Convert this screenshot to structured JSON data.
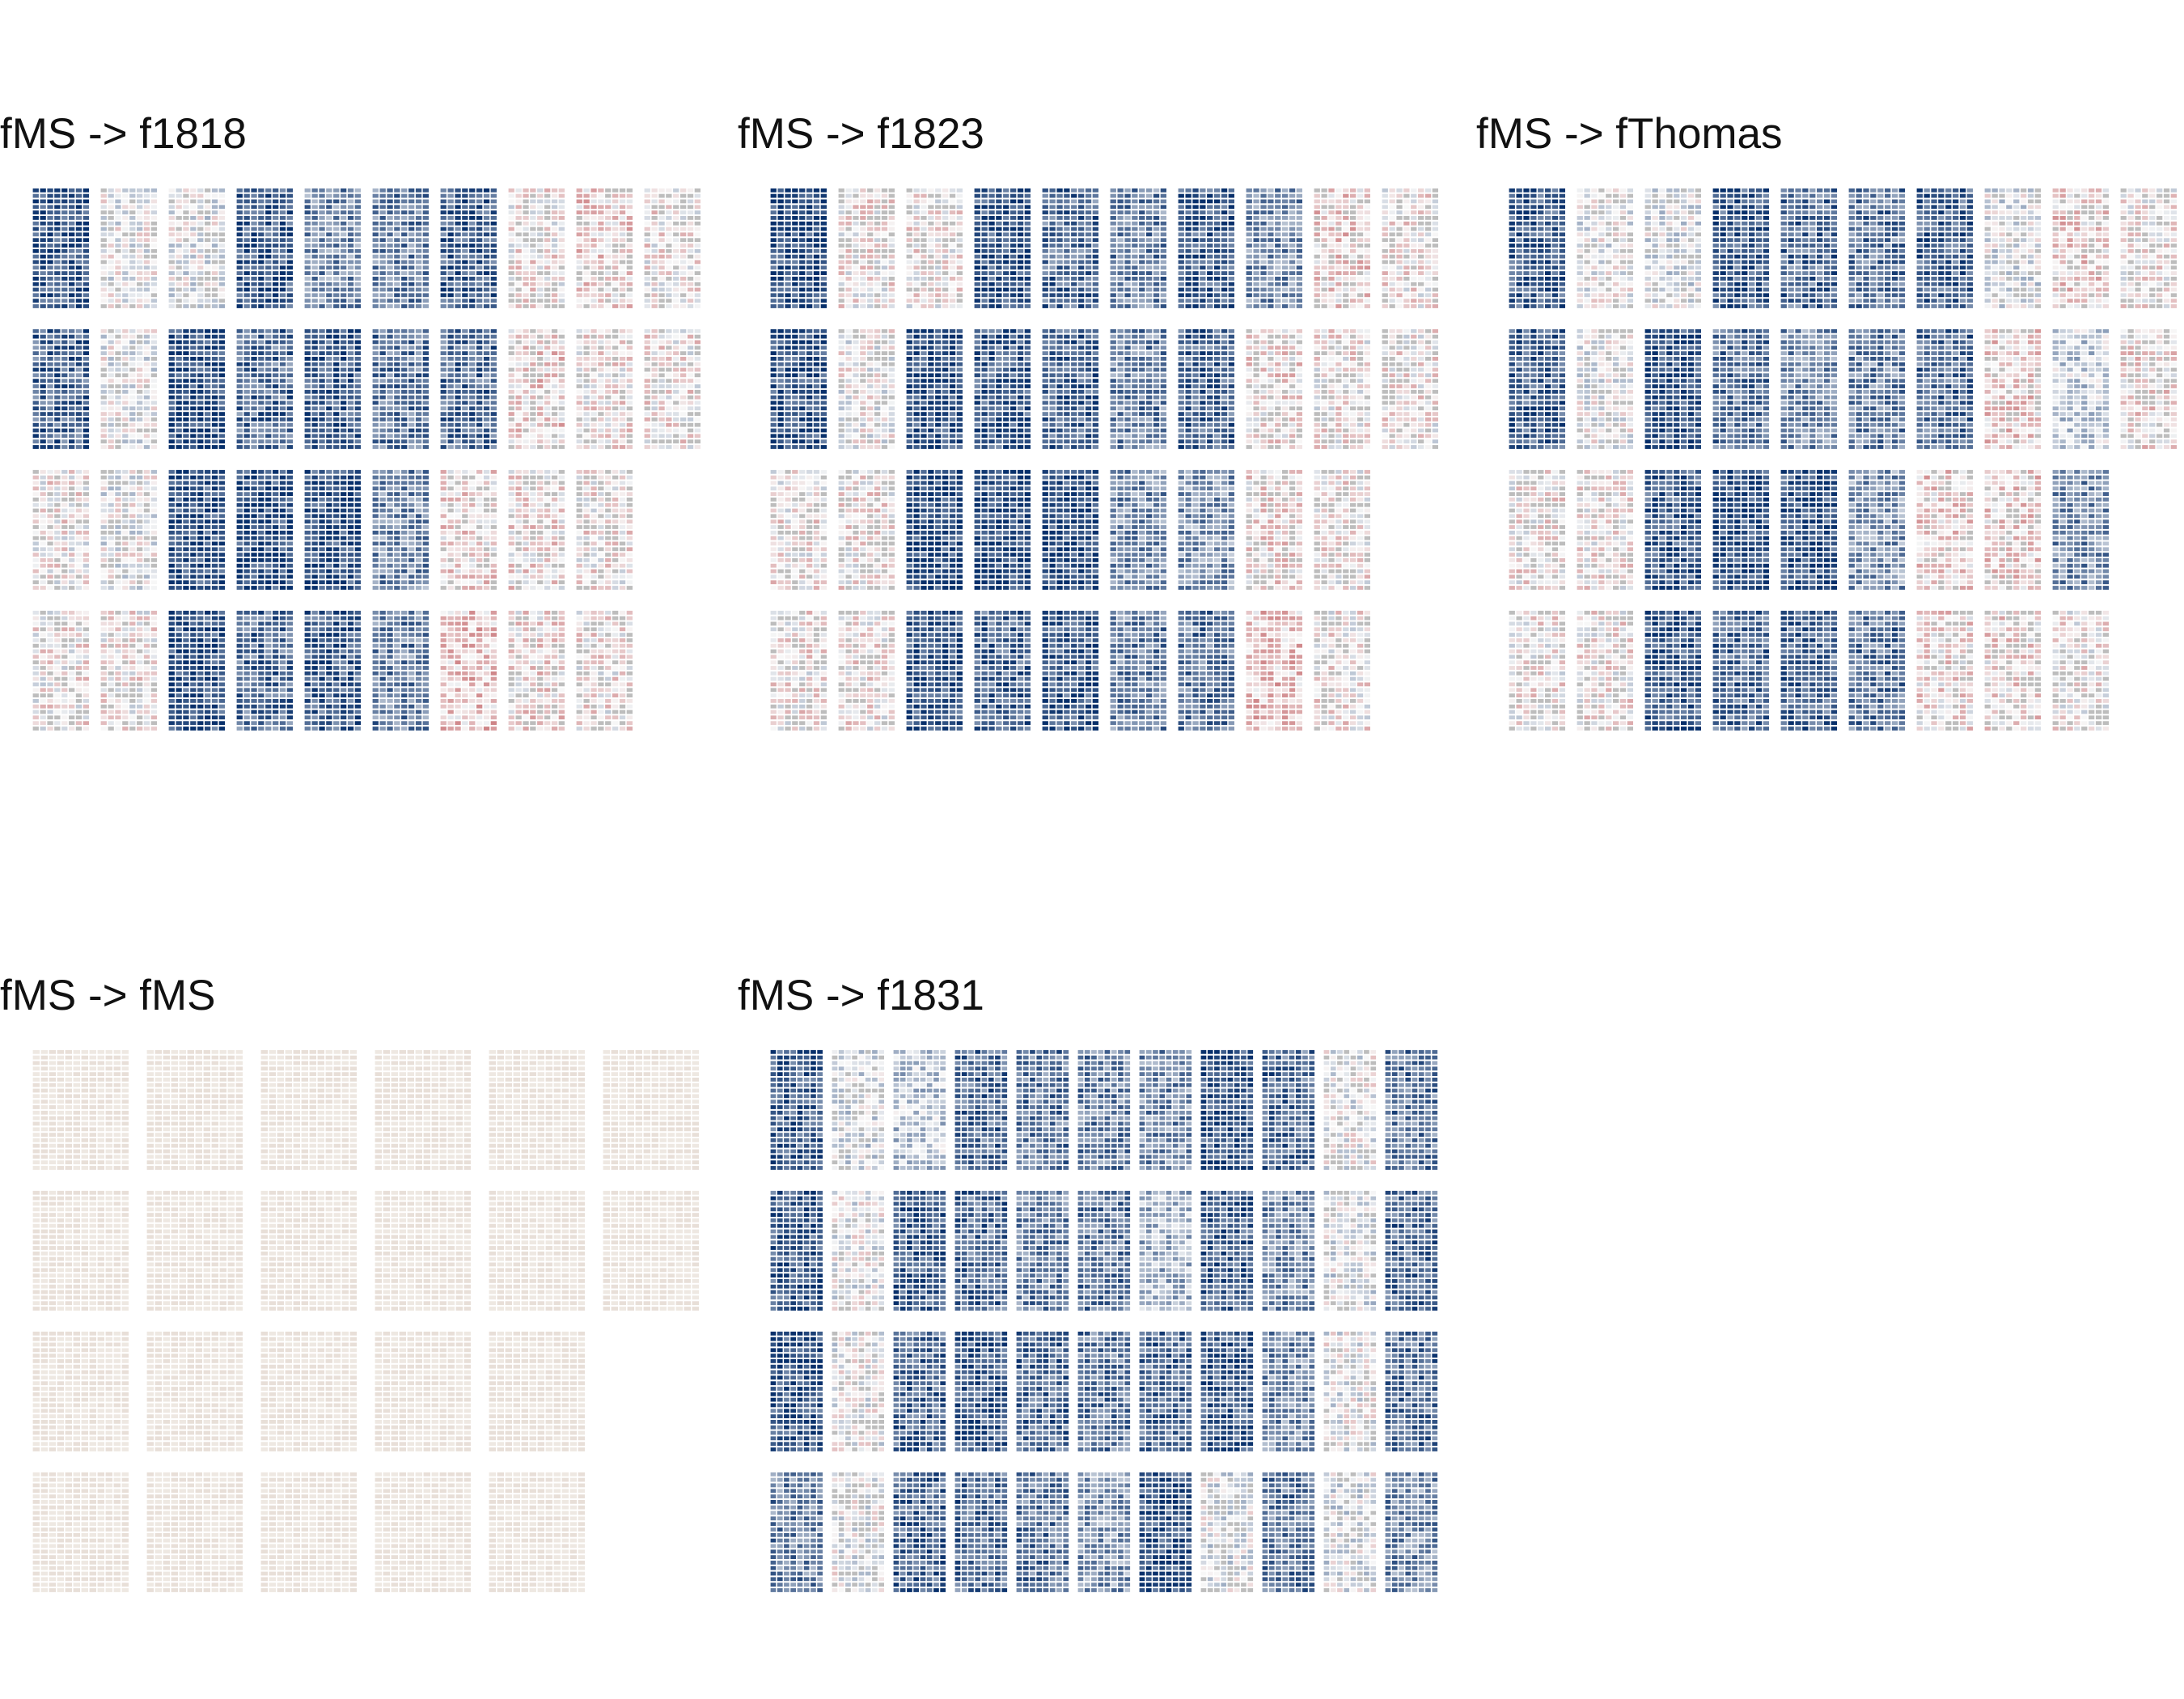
{
  "chart_data": [
    {
      "type": "heatmap",
      "title": "fMS -> f1818",
      "xlabel": "",
      "ylabel": "",
      "grid": false,
      "facet_rows": 4,
      "facet_cols": 10,
      "color_scale": {
        "low": "#08306b",
        "mid": "#f7f7f7",
        "high": "#a50f15",
        "na": "#bdbdbd"
      },
      "facet_means": [
        [
          0.85,
          0.05,
          0.08,
          0.8,
          0.55,
          0.6,
          0.78,
          -0.05,
          -0.15,
          -0.05
        ],
        [
          0.75,
          0.05,
          0.9,
          0.7,
          0.8,
          0.65,
          0.7,
          -0.15,
          -0.05,
          -0.05
        ],
        [
          -0.05,
          0.05,
          0.85,
          0.88,
          0.85,
          0.55,
          -0.1,
          -0.1,
          -0.05,
          null
        ],
        [
          -0.05,
          -0.05,
          0.85,
          0.7,
          0.78,
          0.6,
          -0.2,
          -0.1,
          -0.05,
          null
        ]
      ]
    },
    {
      "type": "heatmap",
      "title": "fMS -> f1823",
      "xlabel": "",
      "ylabel": "",
      "grid": false,
      "facet_rows": 4,
      "facet_cols": 10,
      "color_scale": {
        "low": "#08306b",
        "mid": "#f7f7f7",
        "high": "#a50f15",
        "na": "#bdbdbd"
      },
      "facet_means": [
        [
          0.88,
          -0.05,
          -0.05,
          0.82,
          0.7,
          0.6,
          0.8,
          0.55,
          -0.15,
          -0.05
        ],
        [
          0.85,
          0.02,
          0.85,
          0.8,
          0.78,
          0.6,
          0.75,
          -0.1,
          -0.05,
          -0.05
        ],
        [
          -0.05,
          -0.05,
          0.88,
          0.9,
          0.88,
          0.55,
          0.5,
          -0.1,
          -0.05,
          null
        ],
        [
          -0.05,
          -0.05,
          0.85,
          0.75,
          0.8,
          0.6,
          0.65,
          -0.2,
          -0.05,
          null
        ]
      ]
    },
    {
      "type": "heatmap",
      "title": "fMS -> fThomas",
      "xlabel": "",
      "ylabel": "",
      "grid": false,
      "facet_rows": 4,
      "facet_cols": 10,
      "color_scale": {
        "low": "#08306b",
        "mid": "#f7f7f7",
        "high": "#a50f15",
        "na": "#bdbdbd"
      },
      "facet_means": [
        [
          0.8,
          0.05,
          0.1,
          0.8,
          0.7,
          0.65,
          0.75,
          0.1,
          -0.15,
          -0.05
        ],
        [
          0.78,
          0.05,
          0.85,
          0.65,
          0.55,
          0.6,
          0.7,
          -0.15,
          0.2,
          -0.1
        ],
        [
          -0.05,
          -0.05,
          0.8,
          0.88,
          0.85,
          0.5,
          -0.15,
          -0.15,
          0.55,
          null
        ],
        [
          -0.05,
          -0.05,
          0.8,
          0.7,
          0.75,
          0.65,
          -0.1,
          -0.1,
          -0.05,
          null
        ]
      ]
    },
    {
      "type": "heatmap",
      "title": "fMS -> fMS",
      "xlabel": "",
      "ylabel": "",
      "grid": false,
      "facet_rows": 4,
      "facet_cols": 6,
      "color_scale": {
        "low": "#08306b",
        "mid": "#f7f7f7",
        "high": "#a50f15",
        "na": "#bdbdbd"
      },
      "facet_means": [
        [
          0,
          0,
          0,
          0,
          0,
          0
        ],
        [
          0,
          0,
          0,
          0,
          0,
          0
        ],
        [
          0,
          0,
          0,
          0,
          0,
          null
        ],
        [
          0,
          0,
          0,
          0,
          0,
          null
        ]
      ]
    },
    {
      "type": "heatmap",
      "title": "fMS -> f1831",
      "xlabel": "",
      "ylabel": "",
      "grid": false,
      "facet_rows": 4,
      "facet_cols": 11,
      "color_scale": {
        "low": "#08306b",
        "mid": "#f7f7f7",
        "high": "#a50f15",
        "na": "#bdbdbd"
      },
      "facet_means": [
        [
          0.78,
          0.15,
          0.25,
          0.7,
          0.65,
          0.6,
          0.55,
          0.85,
          0.7,
          0.05,
          0.65
        ],
        [
          0.82,
          0.05,
          0.8,
          0.7,
          0.6,
          0.65,
          0.35,
          0.75,
          0.55,
          0.1,
          0.7
        ],
        [
          0.85,
          0.05,
          0.75,
          0.8,
          0.7,
          0.65,
          0.7,
          0.8,
          0.55,
          0.05,
          0.7
        ],
        [
          0.6,
          0.05,
          0.75,
          0.7,
          0.65,
          0.5,
          0.85,
          0.1,
          0.65,
          0.1,
          0.55
        ]
      ]
    }
  ]
}
